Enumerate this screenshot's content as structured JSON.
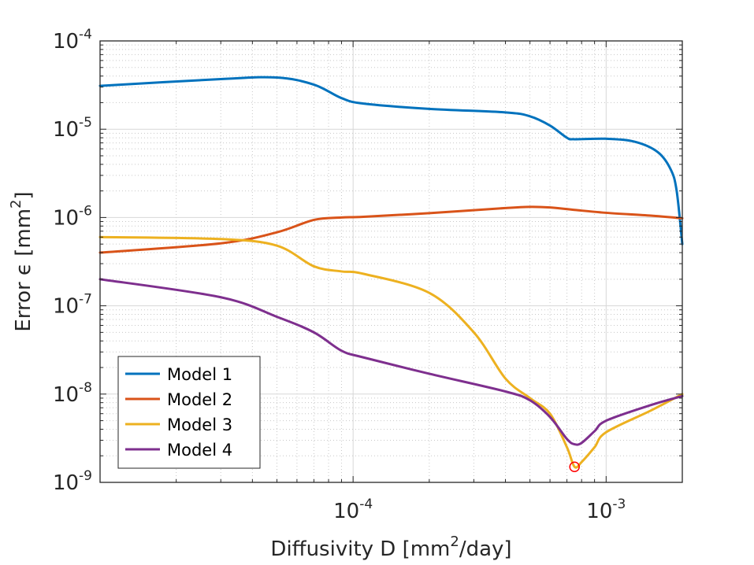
{
  "chart_data": {
    "type": "line",
    "title": "",
    "xlabel": "Diffusivity D [mm²/day]",
    "ylabel": "Error ϵ [mm²]",
    "xscale": "log",
    "yscale": "log",
    "xlim": [
      1e-05,
      0.002
    ],
    "ylim": [
      1e-09,
      0.0001
    ],
    "grid": "major and minor",
    "legend_position": "bottom-left",
    "x_ticks": [
      {
        "value": 0.0001,
        "base": "10",
        "exp": "-4"
      },
      {
        "value": 0.001,
        "base": "10",
        "exp": "-3"
      }
    ],
    "y_ticks": [
      {
        "value": 0.0001,
        "base": "10",
        "exp": "-4"
      },
      {
        "value": 1e-05,
        "base": "10",
        "exp": "-5"
      },
      {
        "value": 1e-06,
        "base": "10",
        "exp": "-6"
      },
      {
        "value": 1e-07,
        "base": "10",
        "exp": "-7"
      },
      {
        "value": 1e-08,
        "base": "10",
        "exp": "-8"
      },
      {
        "value": 1e-09,
        "base": "10",
        "exp": "-9"
      }
    ],
    "xlabel_parts": {
      "pre": "Diffusivity D [mm",
      "sup": "2",
      "post": "/day]"
    },
    "ylabel_parts": {
      "pre": "Error ϵ [mm",
      "sup": "2",
      "post": "]"
    },
    "series": [
      {
        "name": "Model 1",
        "color": "#0072BD",
        "x": [
          1e-05,
          3e-05,
          5e-05,
          7e-05,
          9e-05,
          0.00011,
          0.0002,
          0.0004,
          0.0005,
          0.0006,
          0.0007,
          0.00075,
          0.001,
          0.0013,
          0.0016,
          0.0018,
          0.0019,
          0.002
        ],
        "y": [
          3.1e-05,
          3.7e-05,
          3.85e-05,
          3.2e-05,
          2.25e-05,
          1.95e-05,
          1.7e-05,
          1.55e-05,
          1.4e-05,
          1.1e-05,
          8e-06,
          7.7e-06,
          7.8e-06,
          7.2e-06,
          5.5e-06,
          3.5e-06,
          2e-06,
          5e-07
        ]
      },
      {
        "name": "Model 2",
        "color": "#D95319",
        "x": [
          1e-05,
          3e-05,
          5e-05,
          7e-05,
          9e-05,
          0.00011,
          0.0002,
          0.0004,
          0.0005,
          0.0006,
          0.00075,
          0.001,
          0.0015,
          0.002
        ],
        "y": [
          4e-07,
          5.1e-07,
          6.8e-07,
          9.4e-07,
          1e-06,
          1.02e-06,
          1.12e-06,
          1.28e-06,
          1.32e-06,
          1.3e-06,
          1.22e-06,
          1.13e-06,
          1.05e-06,
          9.8e-07
        ]
      },
      {
        "name": "Model 3",
        "color": "#EDB120",
        "x": [
          1e-05,
          3e-05,
          5e-05,
          7e-05,
          9e-05,
          0.00011,
          0.0002,
          0.0003,
          0.0004,
          0.0005,
          0.0006,
          0.0007,
          0.00075,
          0.0008,
          0.0009,
          0.001,
          0.0015,
          0.002
        ],
        "y": [
          6e-07,
          5.7e-07,
          4.8e-07,
          2.8e-07,
          2.45e-07,
          2.3e-07,
          1.4e-07,
          5e-08,
          1.5e-08,
          9e-09,
          6e-09,
          2.5e-09,
          1.5e-09,
          1.7e-09,
          2.5e-09,
          3.7e-09,
          6.5e-09,
          1e-08
        ]
      },
      {
        "name": "Model 4",
        "color": "#7E2F8E",
        "x": [
          1e-05,
          3e-05,
          5e-05,
          7e-05,
          9e-05,
          0.00011,
          0.0002,
          0.0004,
          0.0005,
          0.0006,
          0.0007,
          0.00075,
          0.0008,
          0.0009,
          0.001,
          0.0015,
          0.002
        ],
        "y": [
          2e-07,
          1.25e-07,
          7.5e-08,
          5e-08,
          3.1e-08,
          2.6e-08,
          1.7e-08,
          1.07e-08,
          8.5e-09,
          5.5e-09,
          3.1e-09,
          2.7e-09,
          2.8e-09,
          3.8e-09,
          5e-09,
          7.5e-09,
          9.5e-09
        ]
      }
    ],
    "marker": {
      "x": 0.00075,
      "y": 1.5e-09,
      "color": "#FF0000",
      "shape": "circle"
    }
  }
}
